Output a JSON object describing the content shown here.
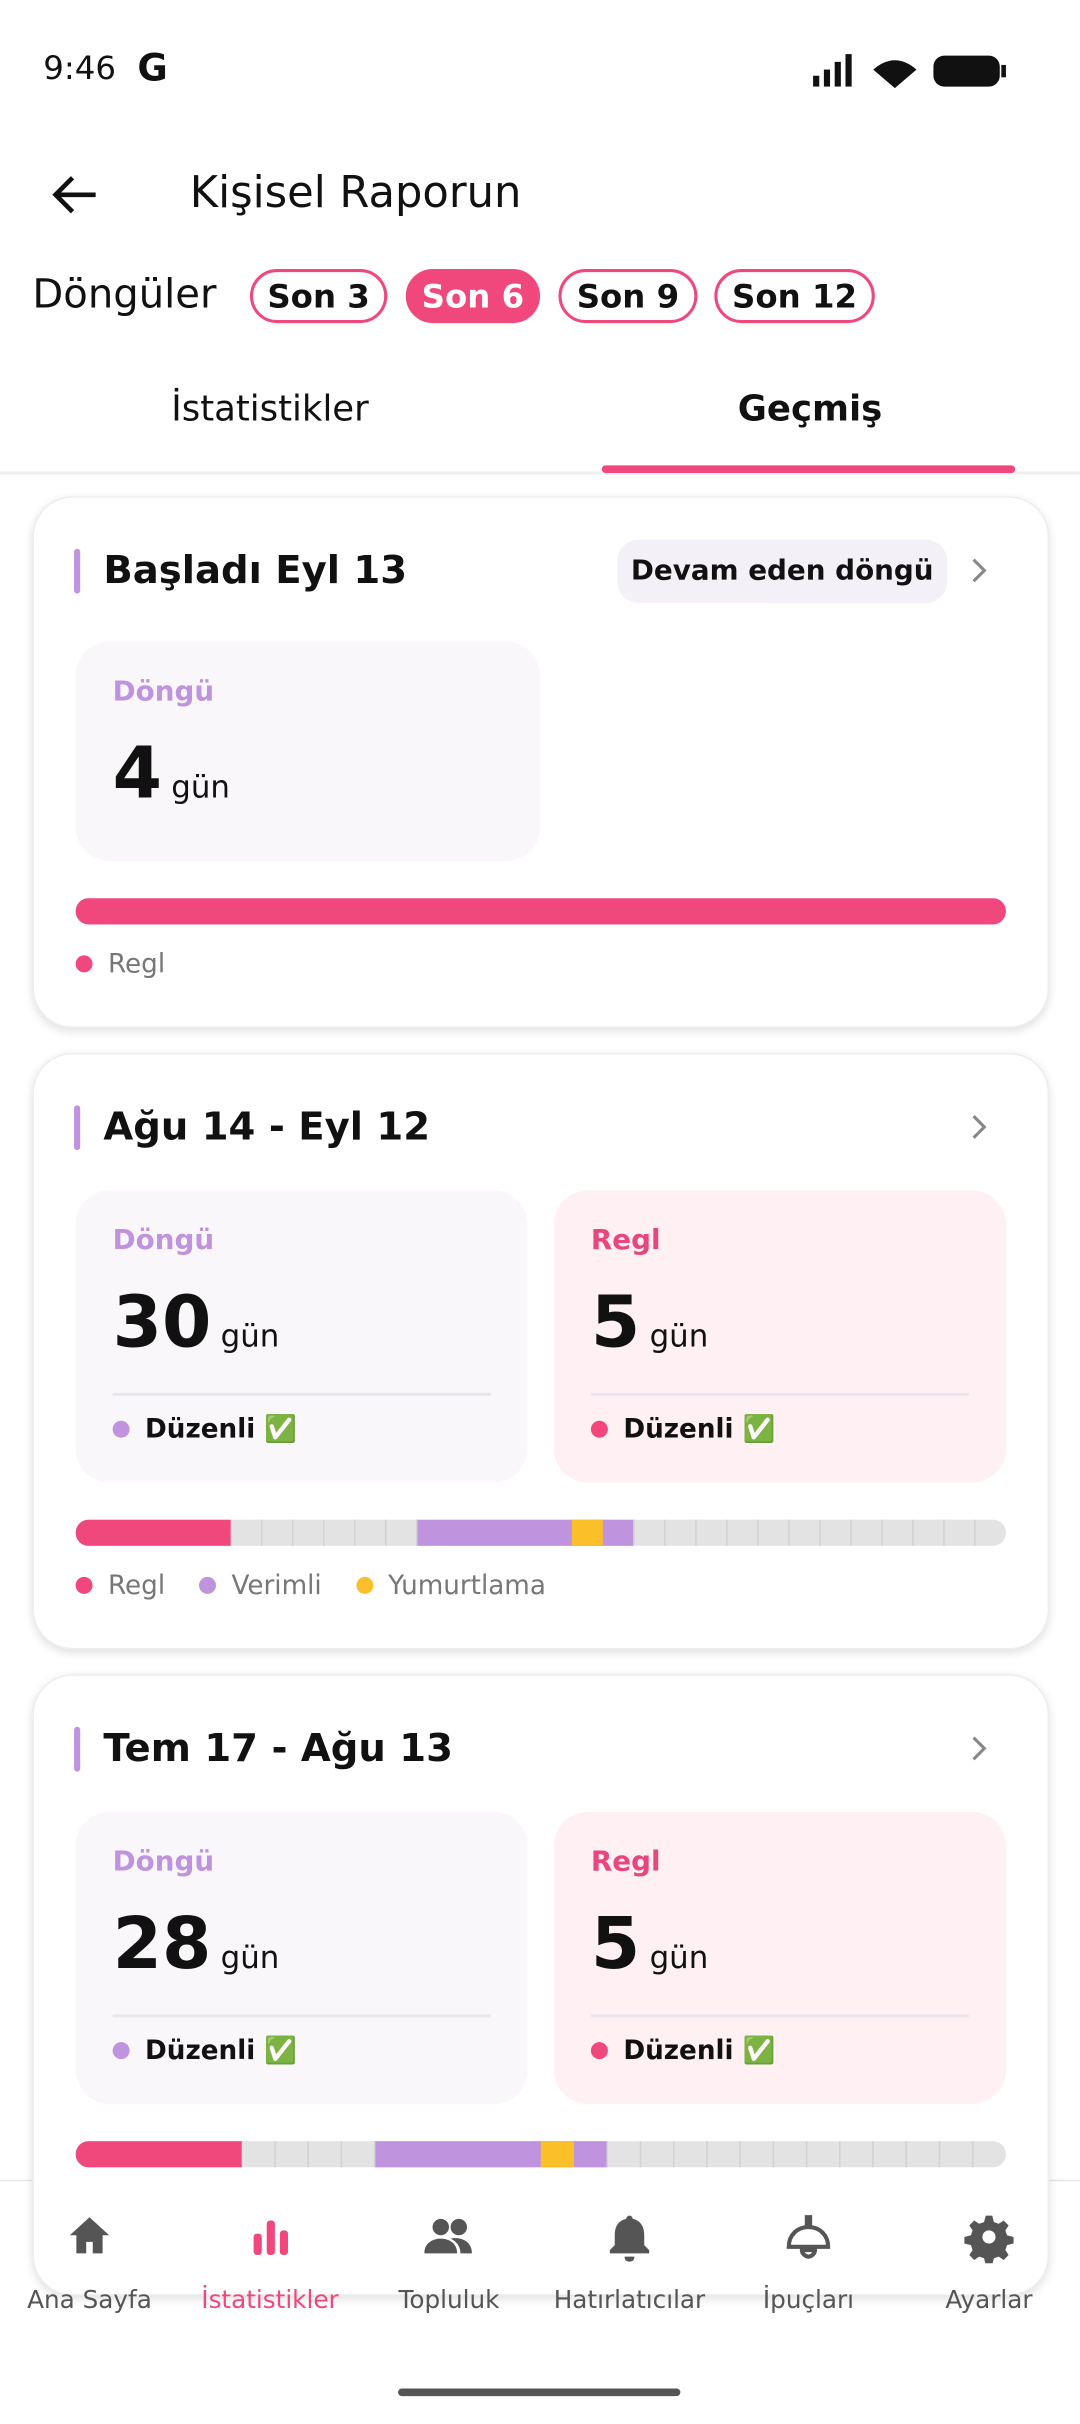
{
  "status_bar": {
    "time": "9:46",
    "carrier_logo": "G"
  },
  "header": {
    "title": "Kişisel Raporun"
  },
  "filter": {
    "label": "Döngüler",
    "options": [
      "Son 3",
      "Son 6",
      "Son 9",
      "Son 12"
    ],
    "selected": 1
  },
  "tabs": {
    "items": [
      "İstatistikler",
      "Geçmiş"
    ],
    "selected": 1
  },
  "cards": [
    {
      "title": "Başladı Eyl 13",
      "badge": "Devam eden döngü",
      "stats": [
        {
          "label": "Döngü",
          "value": 4,
          "unit": "gün"
        }
      ],
      "legend": [
        "Regl"
      ]
    },
    {
      "title": "Ağu 14 - Eyl 12",
      "stats": [
        {
          "label": "Döngü",
          "value": 30,
          "unit": "gün",
          "status": "Düzenli ✅"
        },
        {
          "label": "Regl",
          "value": 5,
          "unit": "gün",
          "status": "Düzenli ✅"
        }
      ],
      "legend": [
        "Regl",
        "Verimli",
        "Yumurtlama"
      ]
    },
    {
      "title": "Tem 17 - Ağu 13",
      "stats": [
        {
          "label": "Döngü",
          "value": 28,
          "unit": "gün",
          "status": "Düzenli ✅"
        },
        {
          "label": "Regl",
          "value": 5,
          "unit": "gün",
          "status": "Düzenli ✅"
        }
      ],
      "legend": []
    }
  ],
  "nav": {
    "items": [
      "Ana Sayfa",
      "İstatistikler",
      "Topluluk",
      "Hatırlatıcılar",
      "İpuçları",
      "Ayarlar"
    ],
    "selected": 1
  }
}
